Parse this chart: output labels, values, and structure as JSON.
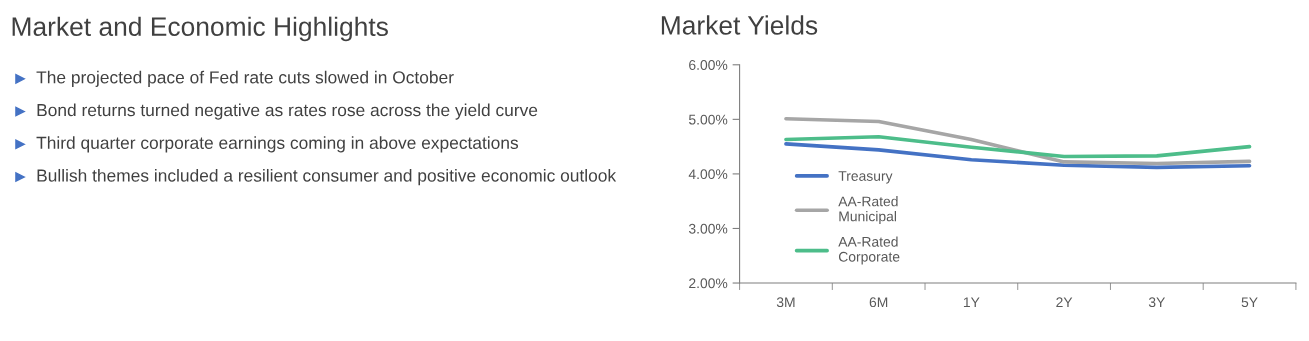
{
  "chart_data": [
    {
      "type": "other",
      "title": "Market and Economic Highlights",
      "annotations": [
        "The projected pace of Fed rate cuts slowed in October",
        "Bond returns turned negative as rates rose across the yield curve",
        "Third quarter corporate earnings coming in above expectations",
        "Bullish themes included a resilient consumer and positive economic outlook"
      ]
    },
    {
      "type": "line",
      "title": "Market Yields",
      "categories": [
        "3M",
        "6M",
        "1Y",
        "2Y",
        "3Y",
        "5Y"
      ],
      "ylim": [
        2,
        6
      ],
      "yticks": [
        {
          "value": 2,
          "label": "2.00%"
        },
        {
          "value": 3,
          "label": "3.00%"
        },
        {
          "value": 4,
          "label": "4.00%"
        },
        {
          "value": 5,
          "label": "5.00%"
        },
        {
          "value": 6,
          "label": "6.00%"
        }
      ],
      "grid": false,
      "legend": "left",
      "marker": "none",
      "line_style": "solid",
      "series": [
        {
          "name": "Treasury",
          "color": "#4472c4",
          "values": [
            4.55,
            4.44,
            4.26,
            4.16,
            4.12,
            4.15
          ]
        },
        {
          "name": "AA-Rated\nMunicipal",
          "color": "#a6a6a6",
          "values": [
            5.01,
            4.96,
            4.63,
            4.22,
            4.19,
            4.23
          ]
        },
        {
          "name": "AA-Rated\nCorporate",
          "color": "#4dbd8a",
          "values": [
            4.63,
            4.68,
            4.49,
            4.32,
            4.33,
            4.5
          ]
        }
      ]
    }
  ]
}
